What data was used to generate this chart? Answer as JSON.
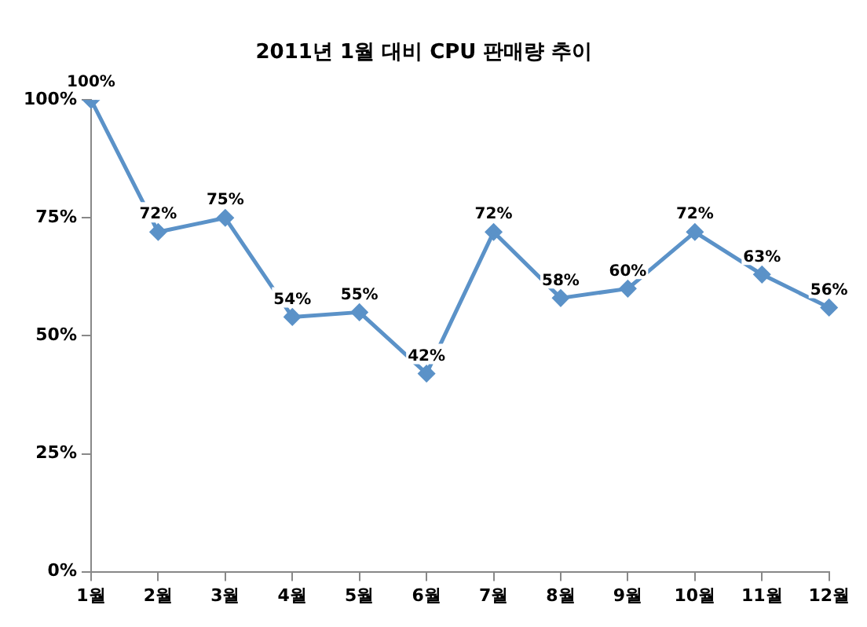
{
  "chart_data": {
    "type": "line",
    "title": "2011년 1월 대비 CPU 판매량 추이",
    "categories": [
      "1월",
      "2월",
      "3월",
      "4월",
      "5월",
      "6월",
      "7월",
      "8월",
      "9월",
      "10월",
      "11월",
      "12월"
    ],
    "series": [
      {
        "color": "#5b92c8",
        "values": [
          100,
          72,
          75,
          54,
          55,
          42,
          72,
          58,
          60,
          72,
          63,
          56
        ]
      }
    ],
    "ylim": [
      0,
      100
    ],
    "yticks": [
      {
        "value": 0,
        "label": "0%"
      },
      {
        "value": 25,
        "label": "25%"
      },
      {
        "value": 50,
        "label": "50%"
      },
      {
        "value": 75,
        "label": "75%"
      },
      {
        "value": 100,
        "label": "100%"
      }
    ],
    "value_labels": [
      "100%",
      "72%",
      "75%",
      "54%",
      "55%",
      "42%",
      "72%",
      "58%",
      "60%",
      "72%",
      "63%",
      "56%"
    ],
    "marker": "diamond",
    "line_style": "solid",
    "grid": false,
    "legend": false
  }
}
